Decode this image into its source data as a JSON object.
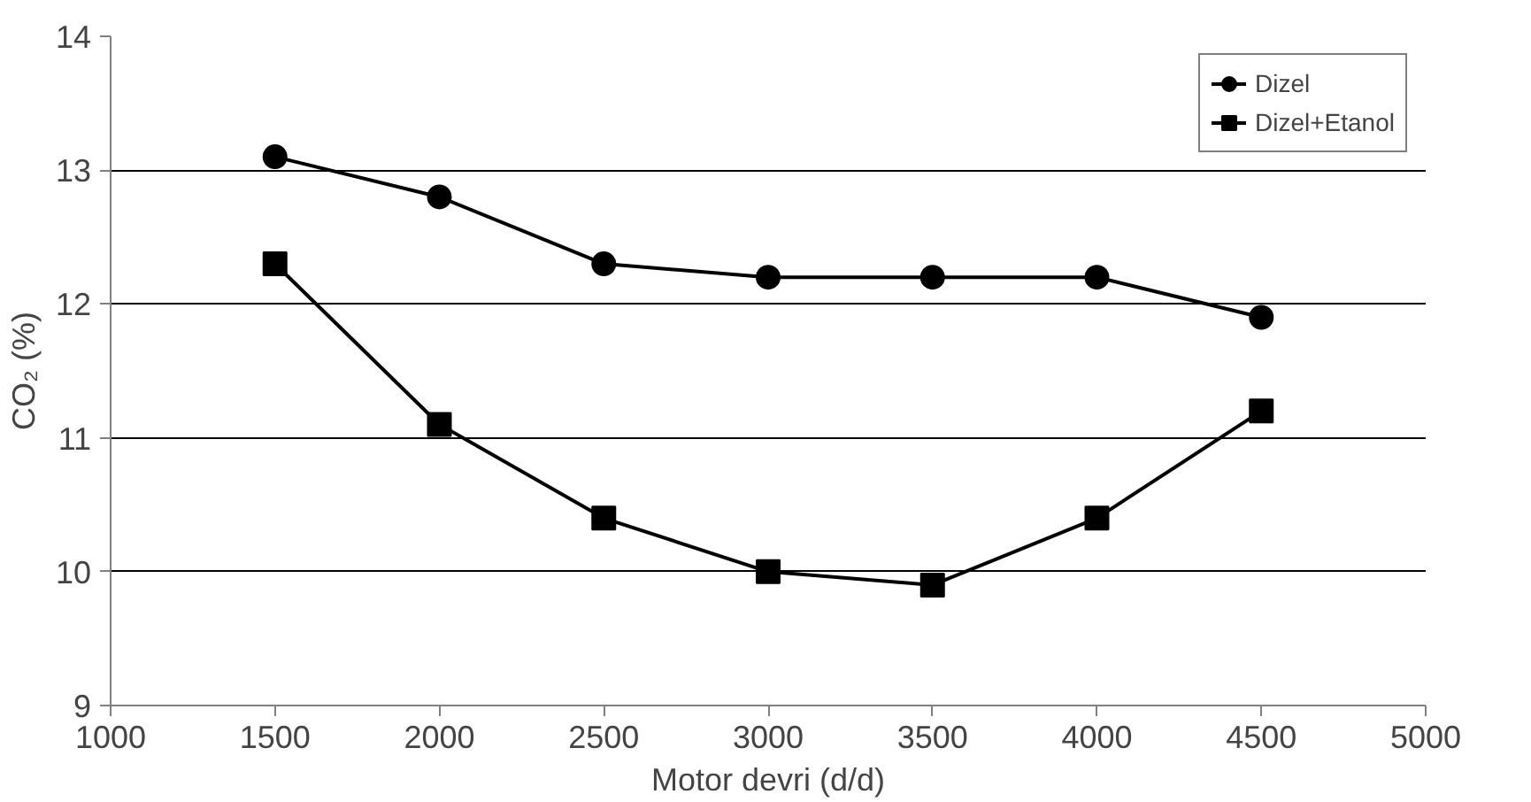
{
  "chart_data": {
    "type": "line",
    "xlabel": "Motor devri (d/d)",
    "ylabel": "CO₂ (%)",
    "x": [
      1500,
      2000,
      2500,
      3000,
      3500,
      4000,
      4500
    ],
    "series": [
      {
        "name": "Dizel",
        "color": "#000000",
        "marker": "circle",
        "values": [
          13.1,
          12.8,
          12.3,
          12.2,
          12.2,
          12.2,
          11.9
        ]
      },
      {
        "name": "Dizel+Etanol",
        "color": "#000000",
        "marker": "square",
        "values": [
          12.3,
          11.1,
          10.4,
          10.0,
          9.9,
          10.4,
          11.2
        ]
      }
    ],
    "xlim": [
      1000,
      5000
    ],
    "xticks": [
      1000,
      1500,
      2000,
      2500,
      3000,
      3500,
      4000,
      4500,
      5000
    ],
    "ylim": [
      9,
      14
    ],
    "yticks": [
      9,
      10,
      11,
      12,
      13,
      14
    ],
    "grid": "y",
    "legend": "top right",
    "line_style": "solid"
  }
}
